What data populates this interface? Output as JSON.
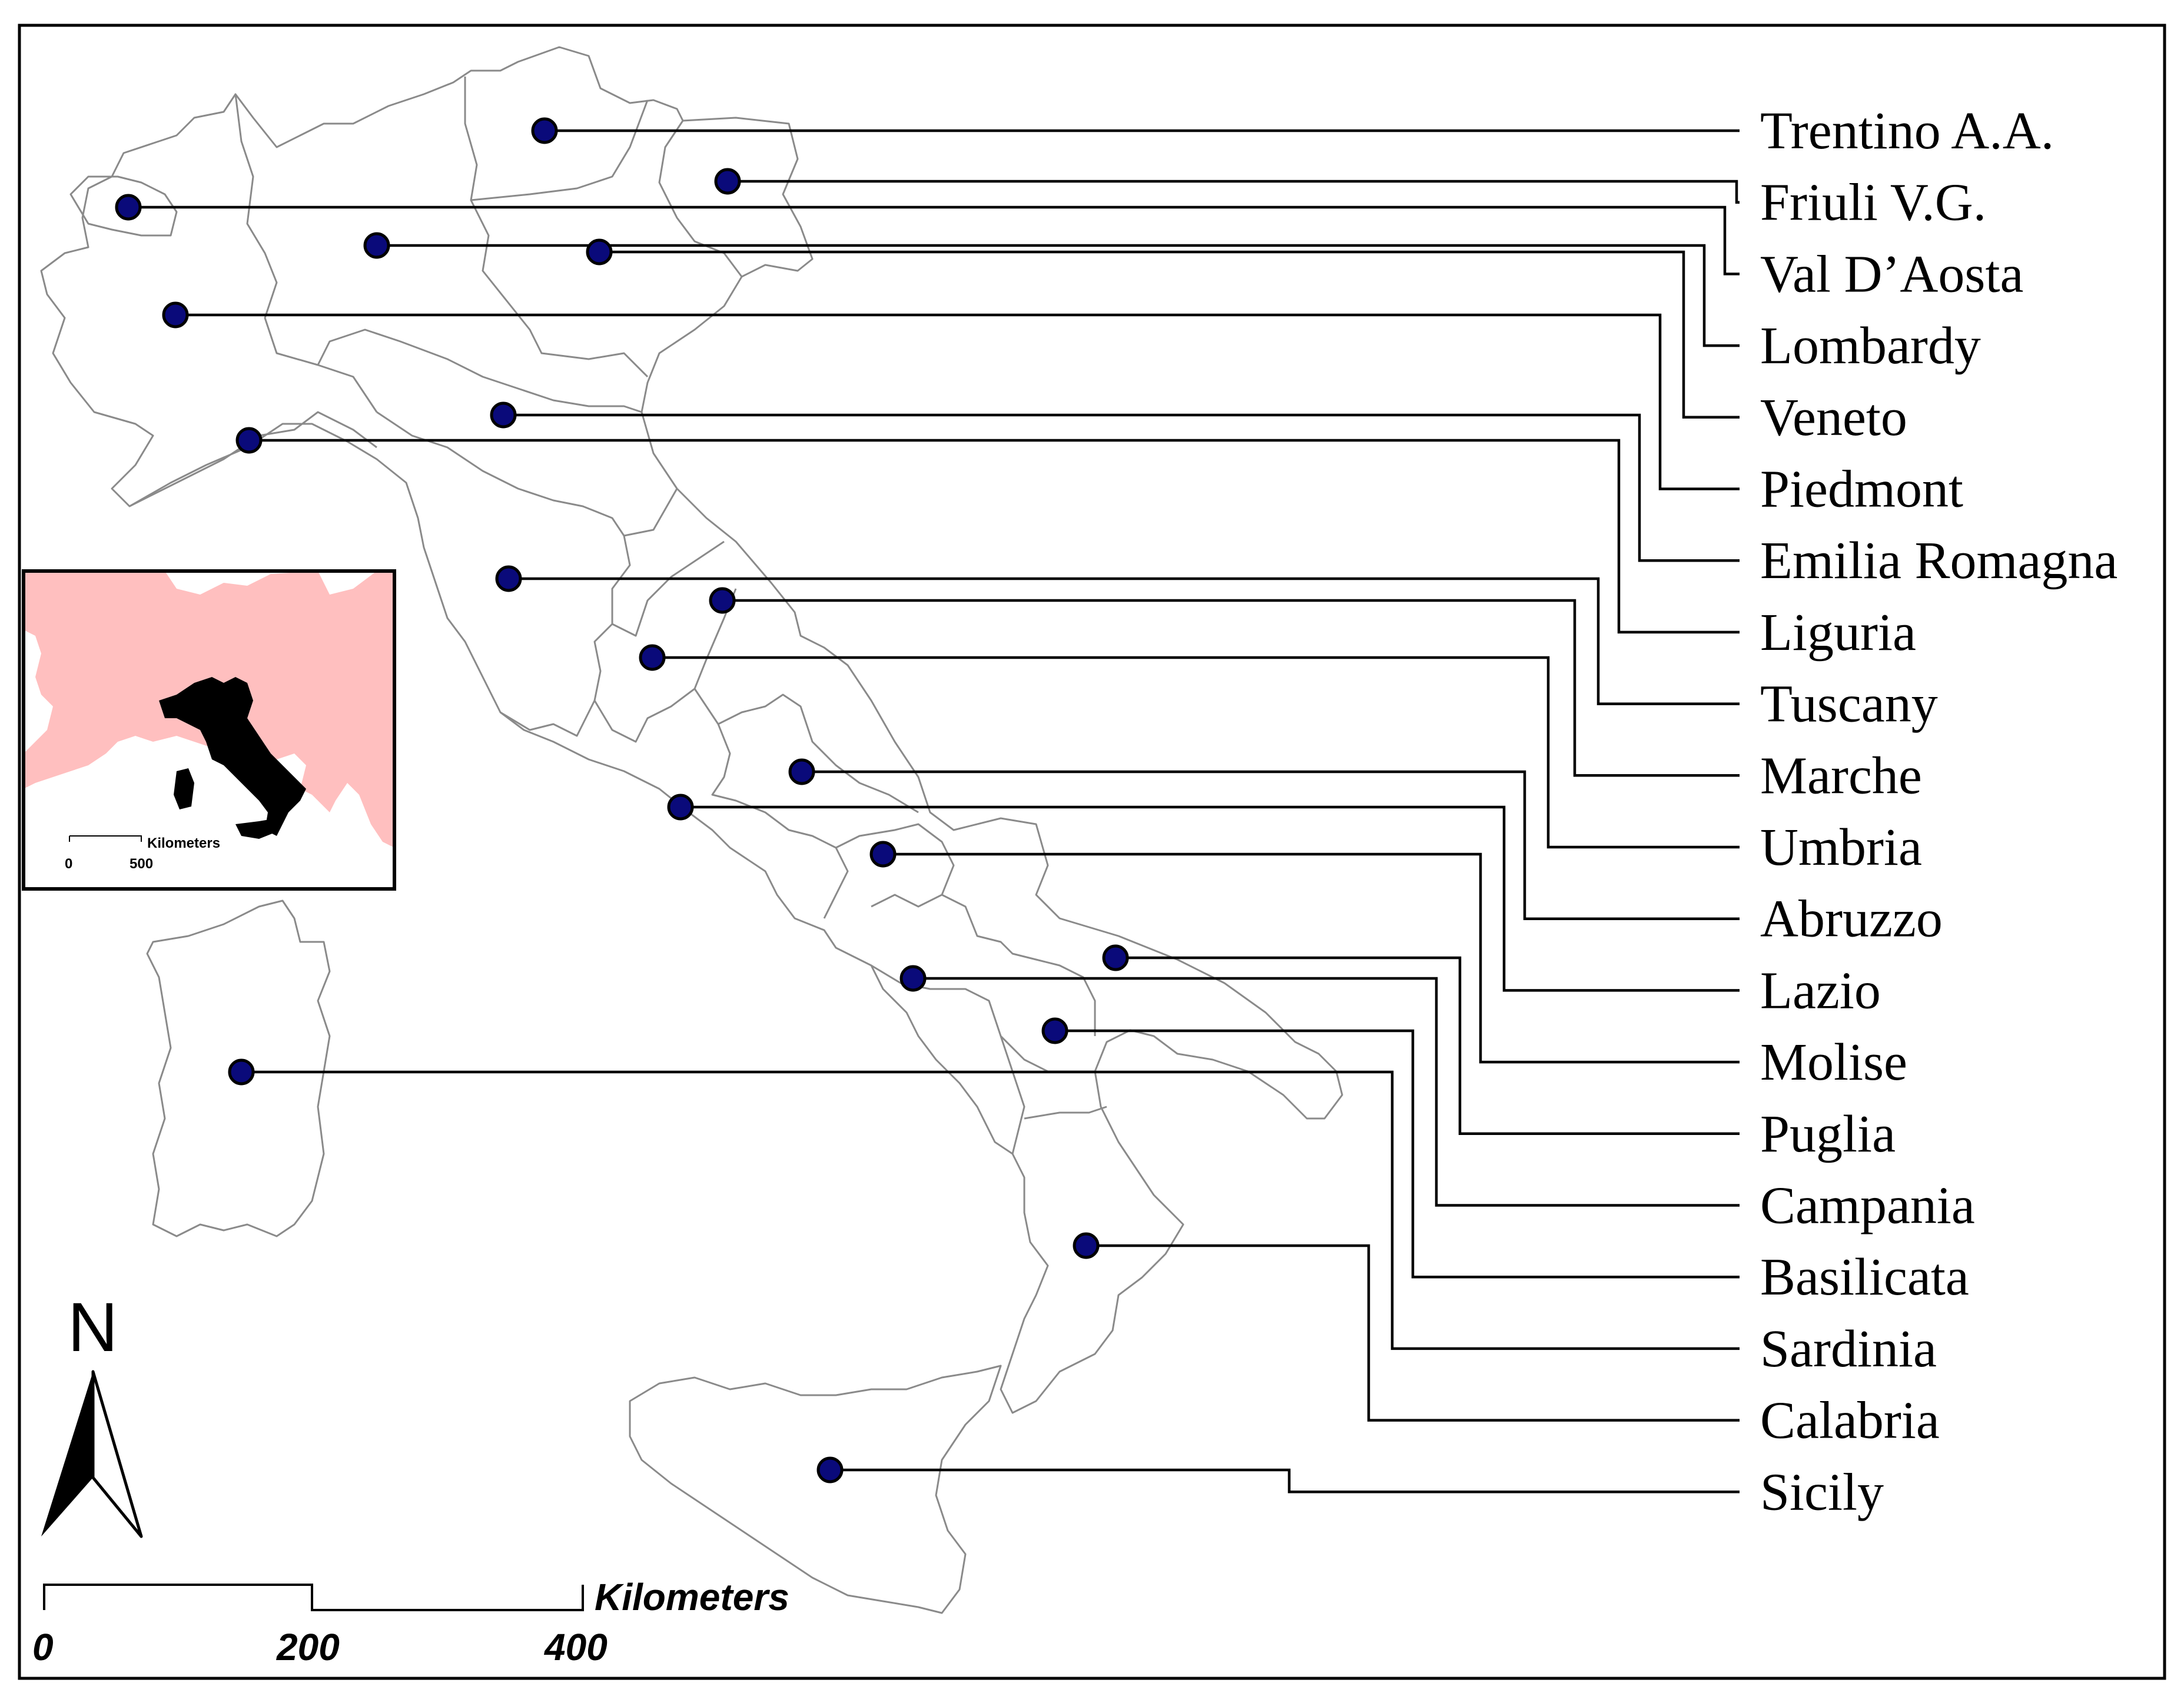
{
  "regions": [
    {
      "label": "Trentino A.A."
    },
    {
      "label": "Friuli V.G."
    },
    {
      "label": "Val D’Aosta"
    },
    {
      "label": "Lombardy"
    },
    {
      "label": "Veneto"
    },
    {
      "label": "Piedmont"
    },
    {
      "label": "Emilia Romagna"
    },
    {
      "label": "Liguria"
    },
    {
      "label": "Tuscany"
    },
    {
      "label": "Marche"
    },
    {
      "label": "Umbria"
    },
    {
      "label": "Abruzzo"
    },
    {
      "label": "Lazio"
    },
    {
      "label": "Molise"
    },
    {
      "label": "Puglia"
    },
    {
      "label": "Campania"
    },
    {
      "label": "Basilicata"
    },
    {
      "label": "Sardinia"
    },
    {
      "label": "Calabria"
    },
    {
      "label": "Sicily"
    }
  ],
  "scale_bar": {
    "unit_label": "Kilometers",
    "ticks": [
      "0",
      "200",
      "400"
    ]
  },
  "north_arrow": {
    "label": "N"
  },
  "inset": {
    "unit_label": "Kilometers",
    "ticks": [
      "0",
      "500"
    ]
  },
  "colors": {
    "marker": "#0a0a7a",
    "outline": "#8a8a8a",
    "inset_land": "#ffbfbf",
    "inset_italy": "#000000"
  }
}
